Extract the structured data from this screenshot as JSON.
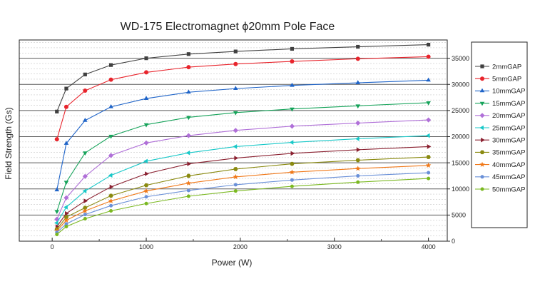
{
  "chart_data": {
    "type": "line",
    "title": "WD-175 Electromagnet ϕ20mm Pole Face",
    "xlabel": "Power (W)",
    "ylabel": "Field Strength (Gs)",
    "xlim": [
      -350,
      4200
    ],
    "ylim": [
      0,
      38500
    ],
    "x_ticks": [
      0,
      1000,
      2000,
      3000,
      4000
    ],
    "y_ticks": [
      0,
      5000,
      10000,
      15000,
      20000,
      25000,
      30000,
      35000
    ],
    "y_axis_side": "right",
    "grid": true,
    "legend_position": "right",
    "x": [
      50,
      150,
      350,
      625,
      1000,
      1450,
      1950,
      2550,
      3250,
      4000
    ],
    "series": [
      {
        "name": "2mmGAP",
        "color": "#404040",
        "marker": "square",
        "values": [
          24800,
          29200,
          31900,
          33700,
          35000,
          35800,
          36300,
          36800,
          37200,
          37600
        ]
      },
      {
        "name": "5mmGAP",
        "color": "#e8242c",
        "marker": "circle",
        "values": [
          19500,
          25700,
          28800,
          30900,
          32300,
          33300,
          33900,
          34400,
          34900,
          35300
        ]
      },
      {
        "name": "10mmGAP",
        "color": "#1f64c8",
        "marker": "triangle-up",
        "values": [
          9800,
          18700,
          23100,
          25700,
          27300,
          28500,
          29200,
          29800,
          30300,
          30800
        ]
      },
      {
        "name": "15mmGAP",
        "color": "#16a35a",
        "marker": "triangle-down",
        "values": [
          5700,
          11300,
          16900,
          20100,
          22300,
          23700,
          24600,
          25300,
          25900,
          26500
        ]
      },
      {
        "name": "20mmGAP",
        "color": "#b070d8",
        "marker": "diamond",
        "values": [
          4200,
          8300,
          12400,
          16400,
          18800,
          20200,
          21200,
          22000,
          22600,
          23200
        ]
      },
      {
        "name": "25mmGAP",
        "color": "#18c8c8",
        "marker": "triangle-left",
        "values": [
          3500,
          6500,
          9600,
          12600,
          15300,
          16900,
          18100,
          18900,
          19600,
          20200
        ]
      },
      {
        "name": "30mmGAP",
        "color": "#8a2030",
        "marker": "triangle-right",
        "values": [
          2800,
          5300,
          7700,
          10400,
          12900,
          14800,
          15900,
          16800,
          17500,
          18100
        ]
      },
      {
        "name": "35mmGAP",
        "color": "#8a8a10",
        "marker": "hexagon",
        "values": [
          2300,
          4600,
          6400,
          8700,
          10700,
          12500,
          13800,
          14800,
          15500,
          16100
        ]
      },
      {
        "name": "40mmGAP",
        "color": "#f07818",
        "marker": "star",
        "values": [
          2000,
          4000,
          5800,
          7700,
          9600,
          11100,
          12300,
          13200,
          13900,
          14500
        ]
      },
      {
        "name": "45mmGAP",
        "color": "#6a90d8",
        "marker": "circle-small",
        "values": [
          1700,
          3300,
          5100,
          6800,
          8500,
          9700,
          10800,
          11700,
          12500,
          13100
        ]
      },
      {
        "name": "50mmGAP",
        "color": "#7ab820",
        "marker": "circle-small",
        "values": [
          1300,
          2800,
          4300,
          5800,
          7200,
          8600,
          9600,
          10500,
          11300,
          12000
        ]
      }
    ]
  }
}
